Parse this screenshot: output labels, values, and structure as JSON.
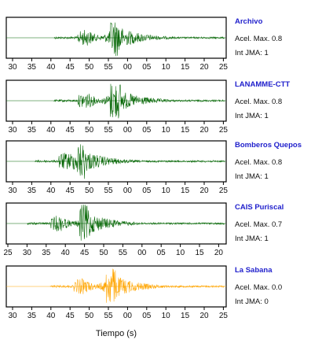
{
  "chart_data": {
    "type": "line",
    "xlabel": "Tiempo (s)",
    "panels": [
      {
        "station": "Archivo",
        "accel_label": "Acel. Max. 0.8",
        "jma_label": "Int JMA: 1",
        "color": "#006400",
        "tick_labels": [
          "30",
          "35",
          "40",
          "45",
          "50",
          "55",
          "00",
          "05",
          "10",
          "15",
          "20",
          "25"
        ],
        "onset_s": 47,
        "peak_s": 57,
        "peak_amplitude": 1.0
      },
      {
        "station": "LANAMME-CTT",
        "accel_label": "Acel. Max. 0.8",
        "jma_label": "Int JMA: 1",
        "color": "#006400",
        "tick_labels": [
          "30",
          "35",
          "40",
          "45",
          "50",
          "55",
          "00",
          "05",
          "10",
          "15",
          "20",
          "25"
        ],
        "onset_s": 47,
        "peak_s": 57,
        "peak_amplitude": 1.0
      },
      {
        "station": "Bomberos Quepos",
        "accel_label": "Acel. Max. 0.8",
        "jma_label": "Int JMA: 1",
        "color": "#006400",
        "tick_labels": [
          "30",
          "35",
          "40",
          "45",
          "50",
          "55",
          "00",
          "05",
          "10",
          "15",
          "20",
          "25"
        ],
        "onset_s": 42,
        "peak_s": 48,
        "peak_amplitude": 1.0
      },
      {
        "station": "CAIS Puriscal",
        "accel_label": "Acel. Max. 0.7",
        "jma_label": "Int JMA: 1",
        "color": "#006400",
        "tick_labels": [
          "25",
          "30",
          "35",
          "40",
          "45",
          "50",
          "55",
          "00",
          "05",
          "10",
          "15",
          "20"
        ],
        "onset_s": 45,
        "peak_s": 54,
        "peak_amplitude": 1.0
      },
      {
        "station": "La Sabana",
        "accel_label": "Acel. Max. 0.0",
        "jma_label": "Int JMA: 0",
        "color": "#ffa500",
        "tick_labels": [
          "30",
          "35",
          "40",
          "45",
          "50",
          "55",
          "00",
          "05",
          "10",
          "15",
          "20",
          "25"
        ],
        "onset_s": 46,
        "peak_s": 56,
        "peak_amplitude": 1.0
      }
    ]
  }
}
